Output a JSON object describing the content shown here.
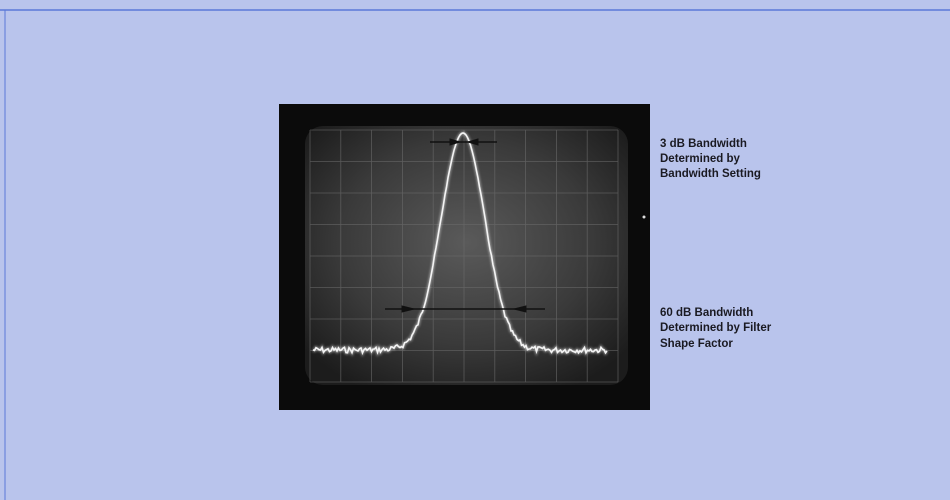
{
  "annotations": [
    {
      "lines": [
        "3 dB Bandwidth",
        "Determined by",
        "Bandwidth Setting"
      ]
    },
    {
      "lines": [
        "60 dB Bandwidth",
        "Determined by Filter",
        "Shape Factor"
      ]
    }
  ]
}
